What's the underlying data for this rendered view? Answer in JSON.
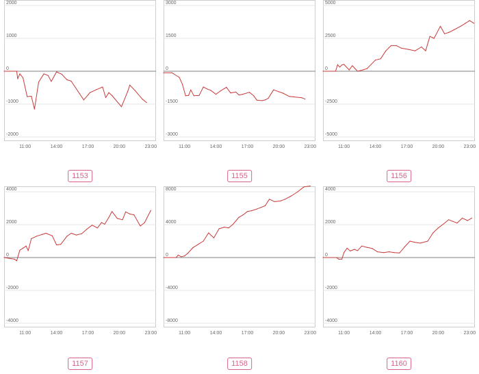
{
  "colors": {
    "line": "#c83a3a",
    "zero": "#808080",
    "grid": "#e6e6e6",
    "frame": "#cccccc",
    "badge": "#d8628b"
  },
  "chart_data": [
    {
      "type": "line",
      "label": "1153",
      "ylim": [
        -2000,
        2000
      ],
      "yticks": [
        2000,
        1000,
        0,
        -1000,
        -2000
      ],
      "xlim": [
        9.0,
        23.5
      ],
      "xticks": [
        {
          "v": 11,
          "t": "11:00"
        },
        {
          "v": 14,
          "t": "14:00"
        },
        {
          "v": 17,
          "t": "17:00"
        },
        {
          "v": 20,
          "t": "20:00"
        },
        {
          "v": 23,
          "t": "23:00"
        }
      ],
      "x": [
        9.0,
        10.2,
        10.3,
        10.5,
        10.8,
        11.2,
        11.6,
        11.9,
        12.3,
        12.8,
        13.2,
        13.5,
        14.0,
        14.5,
        15.0,
        15.4,
        16.2,
        16.6,
        17.2,
        17.8,
        18.4,
        18.7,
        19.0,
        19.3,
        20.2,
        20.8,
        21.0,
        21.5,
        22.2,
        22.6
      ],
      "y": [
        0,
        0,
        -230,
        -80,
        -200,
        -770,
        -760,
        -1150,
        -330,
        -80,
        -130,
        -310,
        -20,
        -90,
        -260,
        -300,
        -680,
        -870,
        -650,
        -560,
        -480,
        -800,
        -650,
        -740,
        -1080,
        -610,
        -420,
        -590,
        -850,
        -950
      ]
    },
    {
      "type": "line",
      "label": "1155",
      "ylim": [
        -3000,
        3000
      ],
      "yticks": [
        3000,
        1500,
        0,
        -1500,
        -3000
      ],
      "xlim": [
        9.0,
        23.5
      ],
      "xticks": [
        {
          "v": 11,
          "t": "11:00"
        },
        {
          "v": 14,
          "t": "14:00"
        },
        {
          "v": 17,
          "t": "17:00"
        },
        {
          "v": 20,
          "t": "20:00"
        },
        {
          "v": 23,
          "t": "23:00"
        }
      ],
      "x": [
        9.0,
        9.8,
        10.5,
        10.8,
        11.1,
        11.4,
        11.6,
        11.9,
        12.4,
        12.8,
        13.2,
        13.5,
        14.0,
        14.4,
        15.0,
        15.4,
        15.9,
        16.2,
        16.5,
        17.2,
        17.6,
        17.9,
        18.4,
        18.7,
        19.0,
        19.5,
        20.0,
        20.4,
        21.0,
        21.4,
        22.2,
        22.5
      ],
      "y": [
        -70,
        -70,
        -280,
        -600,
        -1120,
        -1100,
        -850,
        -1120,
        -1100,
        -720,
        -820,
        -870,
        -1050,
        -910,
        -730,
        -990,
        -950,
        -1080,
        -1060,
        -960,
        -1120,
        -1320,
        -1340,
        -1310,
        -1230,
        -850,
        -930,
        -1000,
        -1150,
        -1170,
        -1210,
        -1270
      ]
    },
    {
      "type": "line",
      "label": "1156",
      "ylim": [
        -5000,
        5000
      ],
      "yticks": [
        5000,
        2500,
        0,
        -2500,
        -5000
      ],
      "xlim": [
        9.0,
        23.5
      ],
      "xticks": [
        {
          "v": 11,
          "t": "11:00"
        },
        {
          "v": 14,
          "t": "14:00"
        },
        {
          "v": 17,
          "t": "17:00"
        },
        {
          "v": 20,
          "t": "20:00"
        },
        {
          "v": 23,
          "t": "23:00"
        }
      ],
      "x": [
        9.0,
        10.2,
        10.4,
        10.6,
        10.8,
        11.0,
        11.5,
        11.8,
        12.3,
        12.8,
        13.2,
        14.0,
        14.5,
        15.0,
        15.5,
        16.0,
        16.5,
        17.2,
        17.8,
        18.4,
        18.8,
        19.2,
        19.6,
        20.2,
        20.6,
        21.0,
        21.5,
        22.2,
        22.6,
        23.0,
        23.4
      ],
      "y": [
        0,
        0,
        500,
        320,
        480,
        520,
        100,
        420,
        0,
        100,
        200,
        850,
        950,
        1550,
        1950,
        1950,
        1750,
        1650,
        1550,
        1850,
        1550,
        2650,
        2500,
        3420,
        2850,
        2950,
        3150,
        3450,
        3650,
        3850,
        3650
      ]
    },
    {
      "type": "line",
      "label": "1157",
      "ylim": [
        -4000,
        4000
      ],
      "yticks": [
        4000,
        2000,
        0,
        -2000,
        -4000
      ],
      "xlim": [
        9.0,
        23.5
      ],
      "xticks": [
        {
          "v": 11,
          "t": "11:00"
        },
        {
          "v": 14,
          "t": "14:00"
        },
        {
          "v": 17,
          "t": "17:00"
        },
        {
          "v": 20,
          "t": "20:00"
        },
        {
          "v": 23,
          "t": "23:00"
        }
      ],
      "x": [
        9.0,
        10.0,
        10.2,
        10.5,
        10.8,
        11.1,
        11.3,
        11.6,
        12.1,
        12.6,
        13.0,
        13.6,
        14.0,
        14.4,
        15.0,
        15.4,
        15.9,
        16.4,
        16.9,
        17.4,
        17.9,
        18.3,
        18.6,
        19.0,
        19.3,
        19.8,
        20.3,
        20.6,
        21.0,
        21.4,
        22.0,
        22.4,
        23.0
      ],
      "y": [
        0,
        -100,
        -200,
        450,
        570,
        700,
        420,
        1150,
        1300,
        1400,
        1480,
        1320,
        770,
        800,
        1300,
        1480,
        1370,
        1450,
        1730,
        1970,
        1800,
        2130,
        2030,
        2450,
        2800,
        2380,
        2300,
        2780,
        2650,
        2600,
        1920,
        2120,
        2860
      ]
    },
    {
      "type": "line",
      "label": "1158",
      "ylim": [
        -8000,
        8000
      ],
      "yticks": [
        8000,
        4000,
        0,
        -4000,
        -8000
      ],
      "xlim": [
        9.0,
        23.5
      ],
      "xticks": [
        {
          "v": 11,
          "t": "11:00"
        },
        {
          "v": 14,
          "t": "14:00"
        },
        {
          "v": 17,
          "t": "17:00"
        },
        {
          "v": 20,
          "t": "20:00"
        },
        {
          "v": 23,
          "t": "23:00"
        }
      ],
      "x": [
        9.0,
        10.2,
        10.4,
        10.7,
        11.0,
        11.3,
        11.8,
        12.3,
        12.8,
        13.3,
        13.8,
        14.3,
        14.8,
        15.2,
        15.6,
        16.2,
        16.6,
        17.0,
        17.4,
        17.9,
        18.3,
        18.7,
        19.1,
        19.6,
        20.2,
        20.6,
        21.2,
        21.8,
        22.4,
        23.0
      ],
      "y": [
        0,
        0,
        300,
        100,
        200,
        500,
        1200,
        1600,
        2000,
        3000,
        2400,
        3500,
        3700,
        3600,
        4000,
        4900,
        5200,
        5600,
        5700,
        5900,
        6100,
        6300,
        7100,
        6800,
        6900,
        7100,
        7500,
        8000,
        8600,
        8700
      ]
    },
    {
      "type": "line",
      "label": "1160",
      "ylim": [
        -4000,
        4000
      ],
      "yticks": [
        4000,
        2000,
        0,
        -2000,
        -4000
      ],
      "xlim": [
        9.0,
        23.5
      ],
      "xticks": [
        {
          "v": 11,
          "t": "11:00"
        },
        {
          "v": 14,
          "t": "14:00"
        },
        {
          "v": 17,
          "t": "17:00"
        },
        {
          "v": 20,
          "t": "20:00"
        },
        {
          "v": 23,
          "t": "23:00"
        }
      ],
      "x": [
        9.0,
        10.3,
        10.5,
        10.8,
        11.0,
        11.3,
        11.6,
        12.0,
        12.3,
        12.7,
        13.2,
        13.7,
        14.2,
        14.8,
        15.3,
        15.8,
        16.3,
        16.8,
        17.3,
        17.8,
        18.3,
        19.0,
        19.5,
        20.0,
        20.5,
        21.0,
        21.4,
        21.8,
        22.3,
        22.8,
        23.2
      ],
      "y": [
        0,
        0,
        -100,
        -100,
        300,
        570,
        400,
        500,
        420,
        700,
        620,
        550,
        350,
        300,
        350,
        300,
        280,
        650,
        1000,
        920,
        880,
        1000,
        1500,
        1800,
        2040,
        2300,
        2200,
        2100,
        2400,
        2250,
        2400
      ]
    }
  ]
}
